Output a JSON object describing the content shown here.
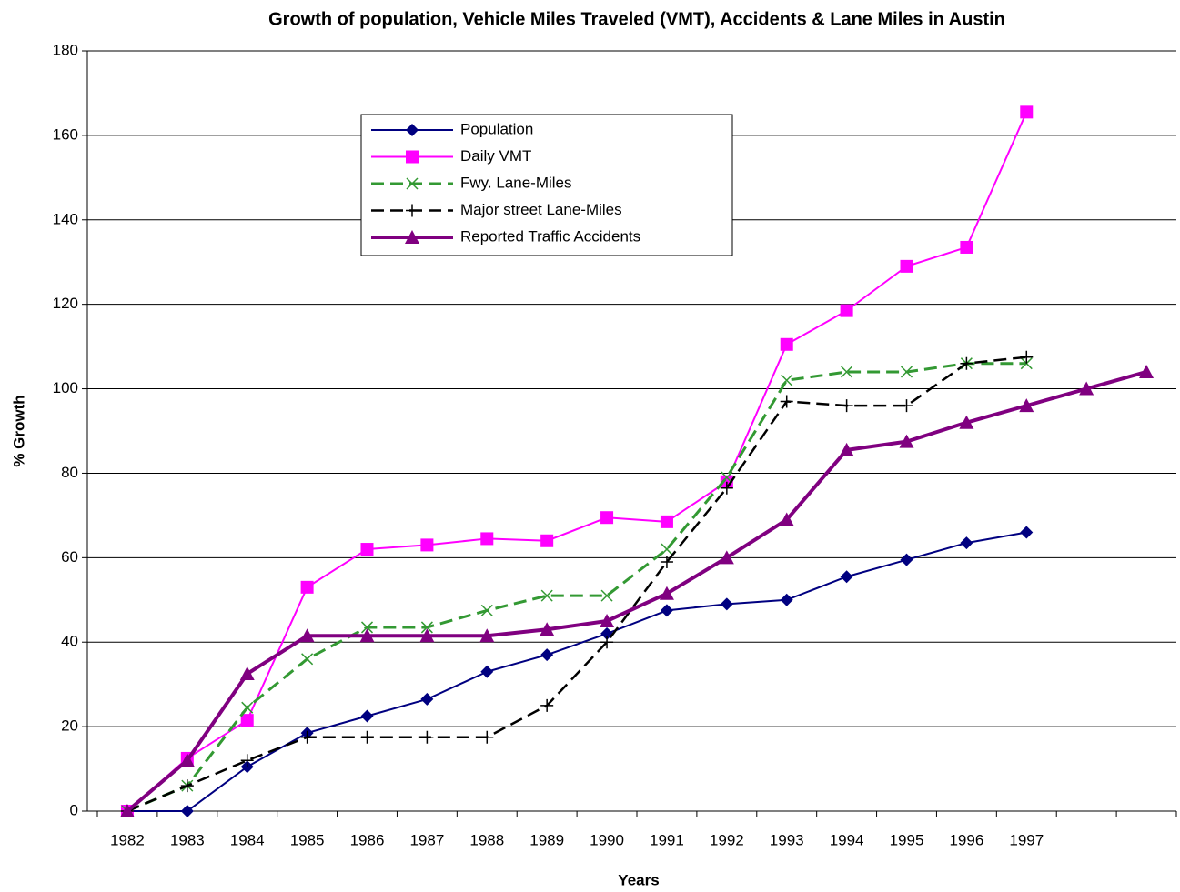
{
  "chart_data": {
    "type": "line",
    "title": "Growth of population, Vehicle Miles Traveled (VMT), Accidents & Lane Miles in Austin",
    "x_label": "Years",
    "y_label": "% Growth",
    "categories": [
      "1982",
      "1983",
      "1984",
      "1985",
      "1986",
      "1987",
      "1988",
      "1989",
      "1990",
      "1991",
      "1992",
      "1993",
      "1994",
      "1995",
      "1996",
      "1997",
      null,
      null
    ],
    "ylim": [
      0,
      180
    ],
    "yticks": [
      0,
      20,
      40,
      60,
      80,
      100,
      120,
      140,
      160,
      180
    ],
    "grid": true,
    "series": [
      {
        "name": "Population",
        "color": "#000080",
        "marker": "diamond",
        "line_style": "solid",
        "values": [
          0,
          0,
          10.5,
          18.5,
          22.5,
          26.5,
          33,
          37,
          42,
          47.5,
          49,
          50,
          55.5,
          59.5,
          63.5,
          66,
          null,
          null
        ]
      },
      {
        "name": "Daily VMT",
        "color": "#ff00ff",
        "marker": "square",
        "line_style": "solid",
        "values": [
          0,
          12.5,
          21.5,
          53,
          62,
          63,
          64.5,
          64,
          69.5,
          68.5,
          78,
          110.5,
          118.5,
          129,
          133.5,
          165.5,
          null,
          null
        ]
      },
      {
        "name": "Fwy. Lane-Miles",
        "color": "#339933",
        "marker": "x",
        "line_style": "dashed",
        "values": [
          0,
          6,
          24.5,
          36,
          43.5,
          43.5,
          47.5,
          51,
          51,
          62,
          79,
          102,
          104,
          104,
          106,
          106,
          null,
          null
        ]
      },
      {
        "name": "Major street Lane-Miles",
        "color": "#000000",
        "marker": "plus",
        "line_style": "dashed",
        "values": [
          0,
          6,
          12,
          17.5,
          17.5,
          17.5,
          17.5,
          25,
          40,
          59,
          76.5,
          97,
          96,
          96,
          106,
          107.5,
          null,
          null
        ]
      },
      {
        "name": "Reported Traffic Accidents",
        "color": "#800080",
        "marker": "triangle",
        "line_style": "solid",
        "values": [
          0,
          12,
          32.5,
          41.5,
          41.5,
          41.5,
          41.5,
          43,
          45,
          51.5,
          60,
          69,
          85.5,
          87.5,
          92,
          96,
          100,
          104
        ]
      }
    ]
  }
}
